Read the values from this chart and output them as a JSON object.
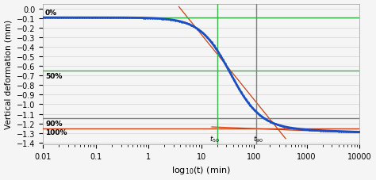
{
  "title": "",
  "xlabel": "log$_{10}$(t) (min)",
  "ylabel": "Vertical deformation (mm)",
  "xlim_log": [
    0.01,
    10000
  ],
  "ylim": [
    -1.42,
    0.05
  ],
  "curve_color": "#1a4fc4",
  "dot_color": "#1a4fc4",
  "line_0pct_color": "#3cb34a",
  "line_50pct_color": "#3cb34a",
  "line_90pct_color": "#808080",
  "line_100pct_color": "#d04010",
  "tangent_color": "#d04010",
  "vline_t50_color": "#3cb34a",
  "vline_t90_color": "#808080",
  "y_0pct": -0.095,
  "y_50pct": -0.645,
  "y_90pct": -1.145,
  "y_100pct": -1.255,
  "t50": 20,
  "t90": 110,
  "background_color": "#f5f5f5",
  "grid_color": "#d8d8d8",
  "k_sigmoid": 3.5,
  "mid_log": 1.55,
  "creep_factor": 0.018,
  "tan1_slope": -0.68,
  "tan1_ref_logt": 1.55,
  "tan1_ref_y": -0.645,
  "tan2_slope": -0.022,
  "tan2_ref_logt": 2.04,
  "tan2_ref_y": -1.255
}
